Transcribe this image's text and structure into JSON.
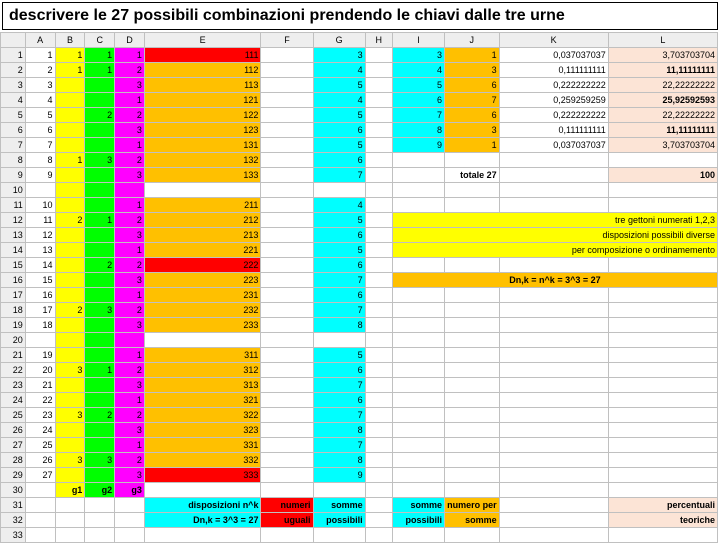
{
  "title": "descrivere le 27 possibili combinazioni prendendo le chiavi dalle tre urne",
  "cols": [
    "",
    "A",
    "B",
    "C",
    "D",
    "E",
    "F",
    "G",
    "H",
    "I",
    "J",
    "K",
    "L"
  ],
  "cw": [
    20,
    24,
    24,
    24,
    24,
    94,
    42,
    42,
    22,
    42,
    44,
    88,
    88
  ],
  "colors": {
    "yl": "#ffff00",
    "gn": "#00ff00",
    "mg": "#ff00ff",
    "rd": "#ff0000",
    "cy": "#00ffff",
    "or": "#ffc000",
    "pk": "#fce4d6"
  },
  "rows": [
    {
      "r": 1,
      "A": {
        "v": 1
      },
      "B": {
        "v": 1,
        "c": "yl"
      },
      "C": {
        "v": 1,
        "c": "gn"
      },
      "D": {
        "v": 1,
        "c": "mg"
      },
      "E": {
        "v": 111,
        "c": "rd"
      },
      "G": {
        "v": 3,
        "c": "cy"
      },
      "I": {
        "v": 3,
        "c": "cy"
      },
      "J": {
        "v": 1,
        "c": "or"
      },
      "K": {
        "v": "0,037037037"
      },
      "L": {
        "v": "3,703703704",
        "c": "pk"
      }
    },
    {
      "r": 2,
      "A": {
        "v": 2
      },
      "B": {
        "v": 1,
        "c": "yl"
      },
      "C": {
        "v": 1,
        "c": "gn"
      },
      "D": {
        "v": 2,
        "c": "mg"
      },
      "E": {
        "v": 112,
        "c": "or"
      },
      "G": {
        "v": 4,
        "c": "cy"
      },
      "I": {
        "v": 4,
        "c": "cy"
      },
      "J": {
        "v": 3,
        "c": "or"
      },
      "K": {
        "v": "0,111111111"
      },
      "L": {
        "v": "11,11111111",
        "c": "pk",
        "b": 1
      }
    },
    {
      "r": 3,
      "A": {
        "v": 3
      },
      "B": {
        "c": "yl"
      },
      "C": {
        "c": "gn"
      },
      "D": {
        "v": 3,
        "c": "mg"
      },
      "E": {
        "v": 113,
        "c": "or"
      },
      "G": {
        "v": 5,
        "c": "cy"
      },
      "I": {
        "v": 5,
        "c": "cy"
      },
      "J": {
        "v": 6,
        "c": "or"
      },
      "K": {
        "v": "0,222222222"
      },
      "L": {
        "v": "22,22222222",
        "c": "pk"
      }
    },
    {
      "r": 4,
      "A": {
        "v": 4
      },
      "B": {
        "c": "yl"
      },
      "C": {
        "c": "gn"
      },
      "D": {
        "v": 1,
        "c": "mg"
      },
      "E": {
        "v": 121,
        "c": "or"
      },
      "G": {
        "v": 4,
        "c": "cy"
      },
      "I": {
        "v": 6,
        "c": "cy"
      },
      "J": {
        "v": 7,
        "c": "or"
      },
      "K": {
        "v": "0,259259259"
      },
      "L": {
        "v": "25,92592593",
        "c": "pk",
        "b": 1
      }
    },
    {
      "r": 5,
      "A": {
        "v": 5
      },
      "B": {
        "c": "yl"
      },
      "C": {
        "v": 2,
        "c": "gn"
      },
      "D": {
        "v": 2,
        "c": "mg"
      },
      "E": {
        "v": 122,
        "c": "or"
      },
      "G": {
        "v": 5,
        "c": "cy"
      },
      "I": {
        "v": 7,
        "c": "cy"
      },
      "J": {
        "v": 6,
        "c": "or"
      },
      "K": {
        "v": "0,222222222"
      },
      "L": {
        "v": "22,22222222",
        "c": "pk"
      }
    },
    {
      "r": 6,
      "A": {
        "v": 6
      },
      "B": {
        "c": "yl"
      },
      "C": {
        "c": "gn"
      },
      "D": {
        "v": 3,
        "c": "mg"
      },
      "E": {
        "v": 123,
        "c": "or"
      },
      "G": {
        "v": 6,
        "c": "cy"
      },
      "I": {
        "v": 8,
        "c": "cy"
      },
      "J": {
        "v": 3,
        "c": "or"
      },
      "K": {
        "v": "0,111111111"
      },
      "L": {
        "v": "11,11111111",
        "c": "pk",
        "b": 1
      }
    },
    {
      "r": 7,
      "A": {
        "v": 7
      },
      "B": {
        "c": "yl"
      },
      "C": {
        "c": "gn"
      },
      "D": {
        "v": 1,
        "c": "mg"
      },
      "E": {
        "v": 131,
        "c": "or"
      },
      "G": {
        "v": 5,
        "c": "cy"
      },
      "I": {
        "v": 9,
        "c": "cy"
      },
      "J": {
        "v": 1,
        "c": "or"
      },
      "K": {
        "v": "0,037037037"
      },
      "L": {
        "v": "3,703703704",
        "c": "pk"
      }
    },
    {
      "r": 8,
      "A": {
        "v": 8
      },
      "B": {
        "v": 1,
        "c": "yl"
      },
      "C": {
        "v": 3,
        "c": "gn"
      },
      "D": {
        "v": 2,
        "c": "mg"
      },
      "E": {
        "v": 132,
        "c": "or"
      },
      "G": {
        "v": 6,
        "c": "cy"
      }
    },
    {
      "r": 9,
      "A": {
        "v": 9
      },
      "B": {
        "c": "yl"
      },
      "C": {
        "c": "gn"
      },
      "D": {
        "v": 3,
        "c": "mg"
      },
      "E": {
        "v": 133,
        "c": "or"
      },
      "G": {
        "v": 7,
        "c": "cy"
      },
      "J": {
        "v": "totale 27",
        "b": 1,
        "l": 1
      },
      "L": {
        "v": 100,
        "c": "pk",
        "b": 1
      }
    },
    {
      "r": 10,
      "B": {
        "c": "yl"
      },
      "C": {
        "c": "gn"
      },
      "D": {
        "c": "mg"
      }
    },
    {
      "r": 11,
      "A": {
        "v": 10
      },
      "B": {
        "c": "yl"
      },
      "C": {
        "c": "gn"
      },
      "D": {
        "v": 1,
        "c": "mg"
      },
      "E": {
        "v": 211,
        "c": "or"
      },
      "G": {
        "v": 4,
        "c": "cy"
      }
    },
    {
      "r": 12,
      "A": {
        "v": 11
      },
      "B": {
        "v": 2,
        "c": "yl"
      },
      "C": {
        "v": 1,
        "c": "gn"
      },
      "D": {
        "v": 2,
        "c": "mg"
      },
      "E": {
        "v": 212,
        "c": "or"
      },
      "G": {
        "v": 5,
        "c": "cy"
      },
      "I": {
        "v": "tre gettoni    numerati 1,2,3",
        "c": "yl",
        "l": 1,
        "sp": 4
      }
    },
    {
      "r": 13,
      "A": {
        "v": 12
      },
      "B": {
        "c": "yl"
      },
      "C": {
        "c": "gn"
      },
      "D": {
        "v": 3,
        "c": "mg"
      },
      "E": {
        "v": 213,
        "c": "or"
      },
      "G": {
        "v": 6,
        "c": "cy"
      },
      "I": {
        "v": "disposizioni  possibili         diverse",
        "c": "yl",
        "l": 1,
        "sp": 4
      }
    },
    {
      "r": 14,
      "A": {
        "v": 13
      },
      "B": {
        "c": "yl"
      },
      "C": {
        "c": "gn"
      },
      "D": {
        "v": 1,
        "c": "mg"
      },
      "E": {
        "v": 221,
        "c": "or"
      },
      "G": {
        "v": 5,
        "c": "cy"
      },
      "I": {
        "v": "per composizione o ordinamemento",
        "c": "yl",
        "l": 1,
        "sp": 4
      }
    },
    {
      "r": 15,
      "A": {
        "v": 14
      },
      "B": {
        "c": "yl"
      },
      "C": {
        "v": 2,
        "c": "gn"
      },
      "D": {
        "v": 2,
        "c": "mg"
      },
      "E": {
        "v": 222,
        "c": "rd"
      },
      "G": {
        "v": 6,
        "c": "cy"
      }
    },
    {
      "r": 16,
      "A": {
        "v": 15
      },
      "B": {
        "c": "yl"
      },
      "C": {
        "c": "gn"
      },
      "D": {
        "v": 3,
        "c": "mg"
      },
      "E": {
        "v": 223,
        "c": "or"
      },
      "G": {
        "v": 7,
        "c": "cy"
      },
      "I": {
        "v": "Dn,k = n^k = 3^3 = 27",
        "c": "or",
        "b": 1,
        "sp": 4,
        "tc": "c"
      }
    },
    {
      "r": 17,
      "A": {
        "v": 16
      },
      "B": {
        "c": "yl"
      },
      "C": {
        "c": "gn"
      },
      "D": {
        "v": 1,
        "c": "mg"
      },
      "E": {
        "v": 231,
        "c": "or"
      },
      "G": {
        "v": 6,
        "c": "cy"
      }
    },
    {
      "r": 18,
      "A": {
        "v": 17
      },
      "B": {
        "v": 2,
        "c": "yl"
      },
      "C": {
        "v": 3,
        "c": "gn"
      },
      "D": {
        "v": 2,
        "c": "mg"
      },
      "E": {
        "v": 232,
        "c": "or"
      },
      "G": {
        "v": 7,
        "c": "cy"
      }
    },
    {
      "r": 19,
      "A": {
        "v": 18
      },
      "B": {
        "c": "yl"
      },
      "C": {
        "c": "gn"
      },
      "D": {
        "v": 3,
        "c": "mg"
      },
      "E": {
        "v": 233,
        "c": "or"
      },
      "G": {
        "v": 8,
        "c": "cy"
      }
    },
    {
      "r": 20,
      "B": {
        "c": "yl"
      },
      "C": {
        "c": "gn"
      },
      "D": {
        "c": "mg"
      }
    },
    {
      "r": 21,
      "A": {
        "v": 19
      },
      "B": {
        "c": "yl"
      },
      "C": {
        "c": "gn"
      },
      "D": {
        "v": 1,
        "c": "mg"
      },
      "E": {
        "v": 311,
        "c": "or"
      },
      "G": {
        "v": 5,
        "c": "cy"
      }
    },
    {
      "r": 22,
      "A": {
        "v": 20
      },
      "B": {
        "v": 3,
        "c": "yl"
      },
      "C": {
        "v": 1,
        "c": "gn"
      },
      "D": {
        "v": 2,
        "c": "mg"
      },
      "E": {
        "v": 312,
        "c": "or"
      },
      "G": {
        "v": 6,
        "c": "cy"
      }
    },
    {
      "r": 23,
      "A": {
        "v": 21
      },
      "B": {
        "c": "yl"
      },
      "C": {
        "c": "gn"
      },
      "D": {
        "v": 3,
        "c": "mg"
      },
      "E": {
        "v": 313,
        "c": "or"
      },
      "G": {
        "v": 7,
        "c": "cy"
      }
    },
    {
      "r": 24,
      "A": {
        "v": 22
      },
      "B": {
        "c": "yl"
      },
      "C": {
        "c": "gn"
      },
      "D": {
        "v": 1,
        "c": "mg"
      },
      "E": {
        "v": 321,
        "c": "or"
      },
      "G": {
        "v": 6,
        "c": "cy"
      }
    },
    {
      "r": 25,
      "A": {
        "v": 23
      },
      "B": {
        "v": 3,
        "c": "yl"
      },
      "C": {
        "v": 2,
        "c": "gn"
      },
      "D": {
        "v": 2,
        "c": "mg"
      },
      "E": {
        "v": 322,
        "c": "or"
      },
      "G": {
        "v": 7,
        "c": "cy"
      }
    },
    {
      "r": 26,
      "A": {
        "v": 24
      },
      "B": {
        "c": "yl"
      },
      "C": {
        "c": "gn"
      },
      "D": {
        "v": 3,
        "c": "mg"
      },
      "E": {
        "v": 323,
        "c": "or"
      },
      "G": {
        "v": 8,
        "c": "cy"
      }
    },
    {
      "r": 27,
      "A": {
        "v": 25
      },
      "B": {
        "c": "yl"
      },
      "C": {
        "c": "gn"
      },
      "D": {
        "v": 1,
        "c": "mg"
      },
      "E": {
        "v": 331,
        "c": "or"
      },
      "G": {
        "v": 7,
        "c": "cy"
      }
    },
    {
      "r": 28,
      "A": {
        "v": 26
      },
      "B": {
        "v": 3,
        "c": "yl"
      },
      "C": {
        "v": 3,
        "c": "gn"
      },
      "D": {
        "v": 2,
        "c": "mg"
      },
      "E": {
        "v": 332,
        "c": "or"
      },
      "G": {
        "v": 8,
        "c": "cy"
      }
    },
    {
      "r": 29,
      "A": {
        "v": 27
      },
      "B": {
        "c": "yl"
      },
      "C": {
        "c": "gn"
      },
      "D": {
        "v": 3,
        "c": "mg"
      },
      "E": {
        "v": 333,
        "c": "rd"
      },
      "G": {
        "v": 9,
        "c": "cy"
      }
    },
    {
      "r": 30,
      "B": {
        "v": "g1",
        "c": "yl",
        "b": 1
      },
      "C": {
        "v": "g2",
        "c": "gn",
        "b": 1
      },
      "D": {
        "v": "g3",
        "c": "mg",
        "b": 1
      }
    },
    {
      "r": 31,
      "E": {
        "v": "disposizioni n^k",
        "c": "cy",
        "l": 1,
        "b": 1
      },
      "F": {
        "v": "numeri",
        "c": "rd",
        "l": 1,
        "b": 1
      },
      "G": {
        "v": "somme",
        "c": "cy",
        "l": 1,
        "b": 1
      },
      "I": {
        "v": "somme",
        "c": "cy",
        "l": 1,
        "b": 1
      },
      "J": {
        "v": "numero per",
        "c": "or",
        "l": 1,
        "b": 1
      },
      "L": {
        "v": "percentuali",
        "c": "pk",
        "l": 1,
        "b": 1
      }
    },
    {
      "r": 32,
      "E": {
        "v": "Dn,k = 3^3 = 27",
        "c": "cy",
        "l": 1,
        "b": 1
      },
      "F": {
        "v": "uguali",
        "c": "rd",
        "l": 1,
        "b": 1
      },
      "G": {
        "v": "possibili",
        "c": "cy",
        "l": 1,
        "b": 1
      },
      "I": {
        "v": "possibili",
        "c": "cy",
        "l": 1,
        "b": 1
      },
      "J": {
        "v": "somme",
        "c": "or",
        "l": 1,
        "b": 1
      },
      "L": {
        "v": "teoriche",
        "c": "pk",
        "l": 1,
        "b": 1
      }
    },
    {
      "r": 33
    }
  ]
}
